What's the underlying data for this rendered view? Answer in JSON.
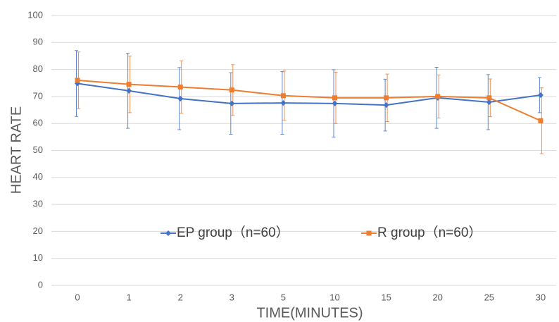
{
  "chart_data": {
    "type": "line",
    "x_label": "TIME(MINUTES)",
    "y_label": "HEART RATE",
    "categories": [
      "0",
      "1",
      "2",
      "3",
      "5",
      "10",
      "15",
      "20",
      "25",
      "30"
    ],
    "series": [
      {
        "name": "EP group（n=60）",
        "color": "#4472c4",
        "marker": "diamond",
        "values": [
          74.8,
          72.1,
          69.2,
          67.4,
          67.6,
          67.4,
          66.8,
          69.5,
          67.9,
          70.5
        ],
        "errors": [
          12.2,
          13.9,
          11.5,
          11.4,
          11.6,
          12.5,
          9.6,
          11.3,
          10.2,
          6.5
        ]
      },
      {
        "name": "R group（n=60）",
        "color": "#ed7d31",
        "marker": "square",
        "values": [
          76,
          74.5,
          73.5,
          72.4,
          70.3,
          69.5,
          69.5,
          70,
          69.5,
          61
        ],
        "errors": [
          10.5,
          10.5,
          9.7,
          9.4,
          9.1,
          9.5,
          8.8,
          8,
          7,
          12.2
        ]
      }
    ],
    "ylim": [
      0,
      100
    ],
    "yticks": [
      0,
      10,
      20,
      30,
      40,
      50,
      60,
      70,
      80,
      90,
      100
    ],
    "grid": true,
    "legend": "inside-bottom"
  }
}
